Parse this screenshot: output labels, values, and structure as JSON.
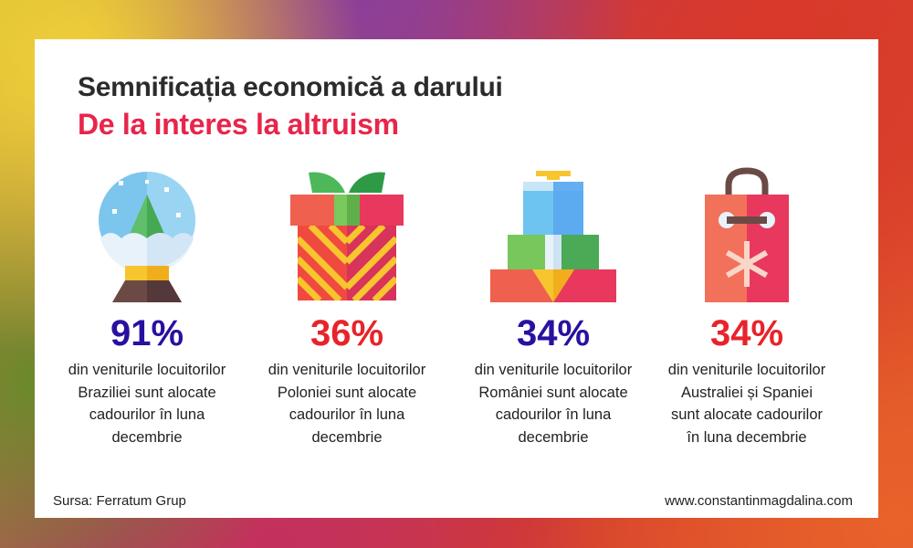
{
  "header": {
    "title": "Semnificația economică a darului",
    "subtitle": "De la interes la altruism"
  },
  "stats": [
    {
      "icon": "snow-globe-icon",
      "percent": "91%",
      "lines": [
        "din veniturile locuitorilor",
        "Braziliei sunt alocate",
        "cadourilor în luna",
        "decembrie"
      ],
      "color": "#2a10a0"
    },
    {
      "icon": "gift-box-icon",
      "percent": "36%",
      "lines": [
        "din veniturile locuitorilor",
        "Poloniei sunt alocate",
        "cadourilor în luna",
        "decembrie"
      ],
      "color": "#e8232a"
    },
    {
      "icon": "stacked-gifts-icon",
      "percent": "34%",
      "lines": [
        "din veniturile locuitorilor",
        "României sunt alocate",
        "cadourilor în luna",
        "decembrie"
      ],
      "color": "#2a10a0"
    },
    {
      "icon": "shopping-bag-icon",
      "percent": "34%",
      "lines": [
        "din veniturile locuitorilor",
        "Australiei și Spaniei",
        "sunt alocate cadourilor",
        "în luna decembrie"
      ],
      "color": "#e8232a"
    }
  ],
  "footer": {
    "source": "Sursa: Ferratum Grup",
    "website": "www.constantinmagdalina.com"
  }
}
